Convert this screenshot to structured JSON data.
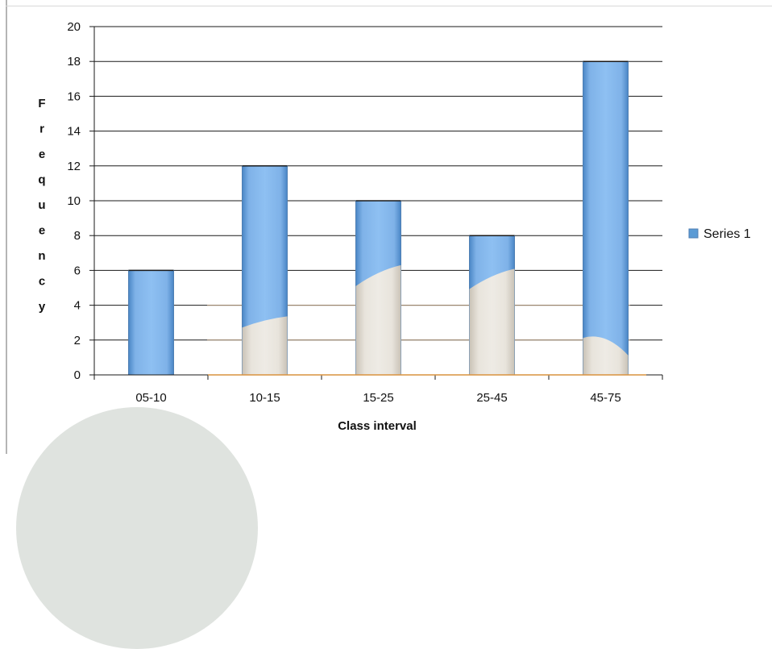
{
  "chart_data": {
    "type": "bar",
    "title": "",
    "xlabel": "Class interval",
    "ylabel": "Frequency",
    "ylabel_display": [
      "F",
      "r",
      "e",
      "q",
      "u",
      "e",
      "n",
      "c",
      "y"
    ],
    "categories": [
      "05-10",
      "10-15",
      "15-25",
      "25-45",
      "45-75"
    ],
    "series": [
      {
        "name": "Series 1",
        "values": [
          6,
          12,
          10,
          8,
          18
        ]
      }
    ],
    "ylim": [
      0,
      20
    ],
    "yticks": [
      0,
      2,
      4,
      6,
      8,
      10,
      12,
      14,
      16,
      18,
      20
    ],
    "grid": true,
    "legend": "right",
    "colors": {
      "bar": "#5b9bd5",
      "bar_edge": "#4f7fb3",
      "grid": "#000000",
      "overlay": "#e5e0d8"
    }
  }
}
